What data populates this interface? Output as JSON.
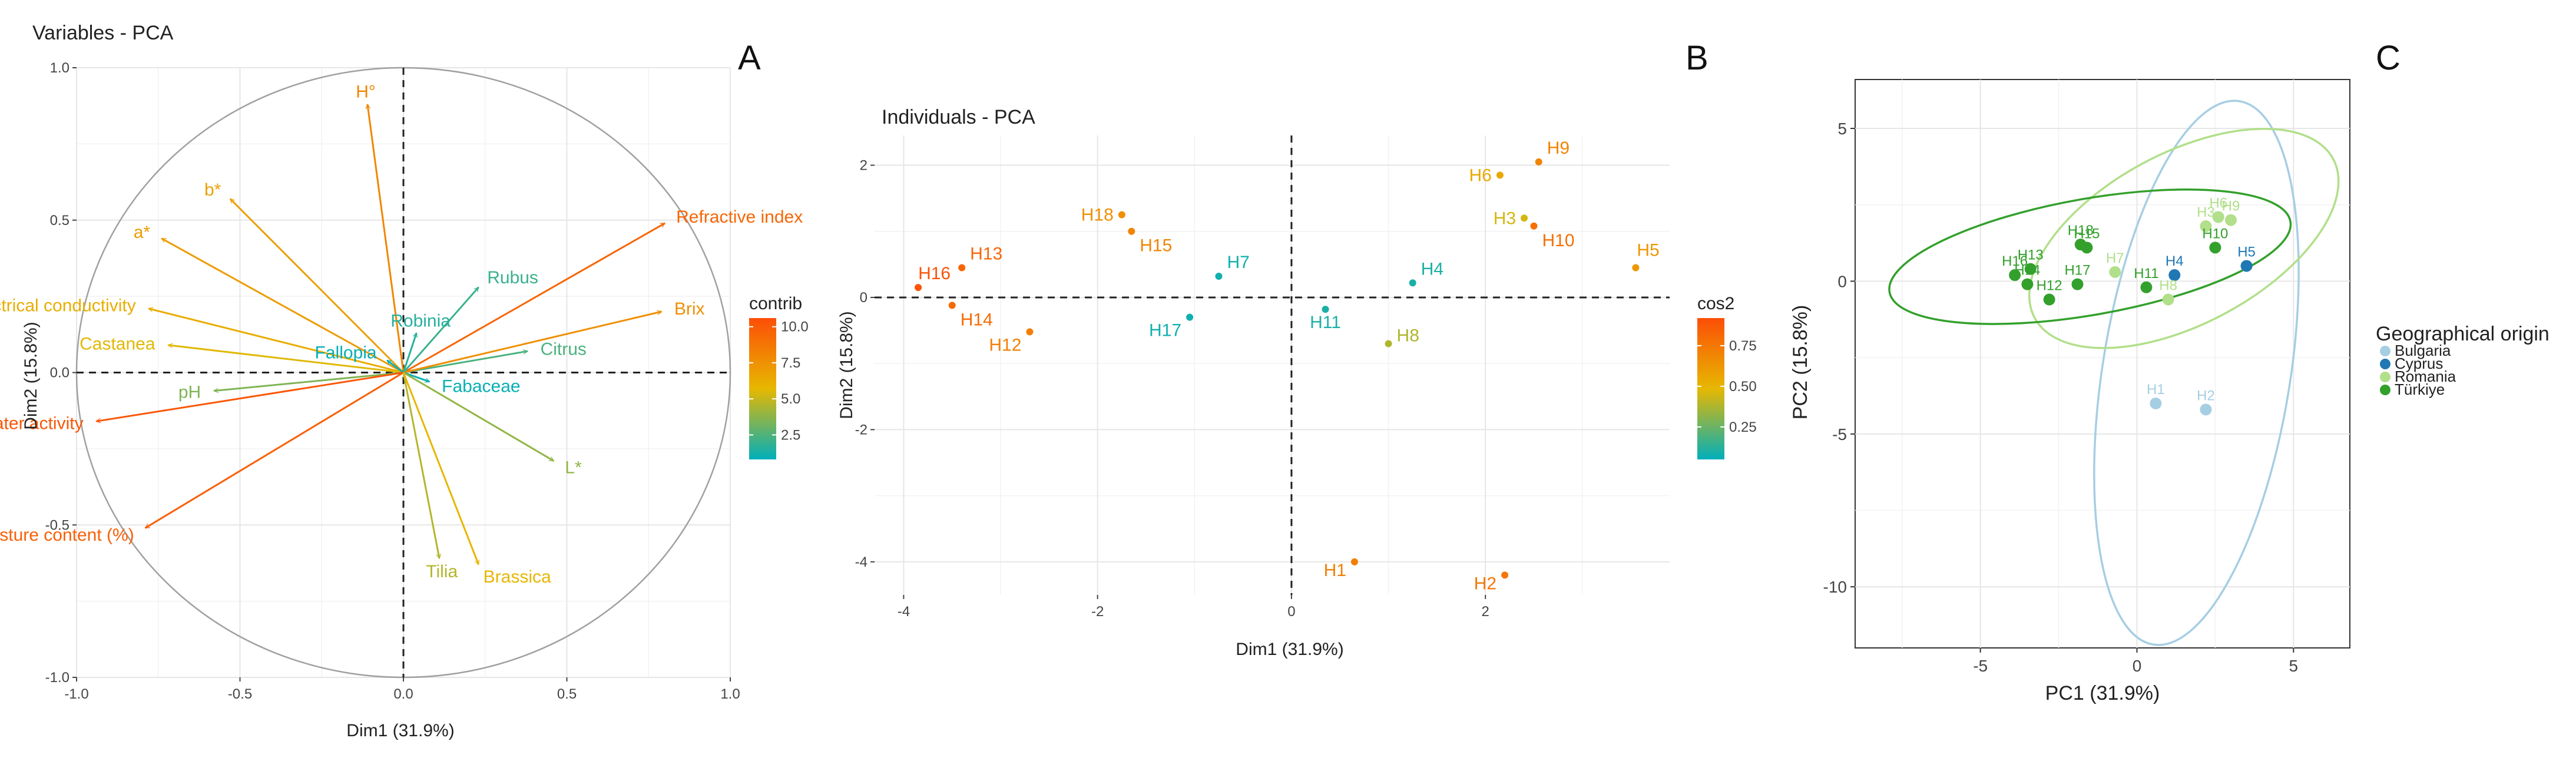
{
  "panel_labels": {
    "a": "A",
    "b": "B",
    "c": "C"
  },
  "chart_data": [
    {
      "type": "scatter",
      "subtype": "pca-variables-correlation-circle",
      "title": "Variables - PCA",
      "xlabel": "Dim1 (31.9%)",
      "ylabel": "Dim2 (15.8%)",
      "xlim": [
        -1.0,
        1.0
      ],
      "ylim": [
        -1.0,
        1.0
      ],
      "xticks": [
        -1.0,
        -0.5,
        0.0,
        0.5,
        1.0
      ],
      "yticks": [
        -1.0,
        -0.5,
        0.0,
        0.5,
        1.0
      ],
      "xtick_labels": [
        "-1.0",
        "-0.5",
        "0.0",
        "0.5",
        "1.0"
      ],
      "ytick_labels": [
        "-1.0",
        "-0.5",
        "0.0",
        "0.5",
        "1.0"
      ],
      "grid": true,
      "legend": {
        "title": "contrib",
        "placement": "right",
        "ticks": [
          "10.0",
          "7.5",
          "5.0",
          "2.5"
        ],
        "tick_values": [
          10.0,
          7.5,
          5.0,
          2.5
        ],
        "range": [
          0.8,
          10.6
        ]
      },
      "points": [
        {
          "label": "H°",
          "x": -0.11,
          "y": 0.88,
          "contrib": 8.0
        },
        {
          "label": "a*",
          "x": -0.74,
          "y": 0.44,
          "contrib": 7.0
        },
        {
          "label": "b*",
          "x": -0.53,
          "y": 0.57,
          "contrib": 6.8
        },
        {
          "label": "Refractive index",
          "x": 0.8,
          "y": 0.49,
          "contrib": 9.5
        },
        {
          "label": "Rubus",
          "x": 0.23,
          "y": 0.28,
          "contrib": 2.0
        },
        {
          "label": "Robinia",
          "x": 0.04,
          "y": 0.13,
          "contrib": 1.6
        },
        {
          "label": "Electrical conductivity",
          "x": -0.78,
          "y": 0.21,
          "contrib": 6.2
        },
        {
          "label": "Castanea",
          "x": -0.72,
          "y": 0.09,
          "contrib": 5.6
        },
        {
          "label": "Fallopia",
          "x": -0.05,
          "y": 0.04,
          "contrib": 0.9
        },
        {
          "label": "Citrus",
          "x": 0.38,
          "y": 0.07,
          "contrib": 2.4
        },
        {
          "label": "Brix",
          "x": 0.79,
          "y": 0.2,
          "contrib": 7.6
        },
        {
          "label": "Fabaceae",
          "x": 0.08,
          "y": -0.03,
          "contrib": 1.0
        },
        {
          "label": "pH",
          "x": -0.58,
          "y": -0.06,
          "contrib": 3.5
        },
        {
          "label": "Water activity",
          "x": -0.94,
          "y": -0.16,
          "contrib": 10.2
        },
        {
          "label": "L*",
          "x": 0.46,
          "y": -0.29,
          "contrib": 3.9
        },
        {
          "label": "Moisture content (%)",
          "x": -0.79,
          "y": -0.51,
          "contrib": 9.8
        },
        {
          "label": "Tilia",
          "x": 0.11,
          "y": -0.61,
          "contrib": 4.6
        },
        {
          "label": "Brassica",
          "x": 0.23,
          "y": -0.63,
          "contrib": 5.8
        }
      ]
    },
    {
      "type": "scatter",
      "subtype": "pca-individuals",
      "title": "Individuals - PCA",
      "xlabel": "Dim1 (31.9%)",
      "ylabel": "Dim2 (15.8%)",
      "xlim": [
        -4.3,
        3.9
      ],
      "ylim": [
        -4.5,
        2.45
      ],
      "xticks": [
        -4,
        -2,
        0,
        2
      ],
      "yticks": [
        -4,
        -2,
        0,
        2
      ],
      "xtick_labels": [
        "-4",
        "-2",
        "0",
        "2"
      ],
      "ytick_labels": [
        "-4",
        "-2",
        "0",
        "2"
      ],
      "grid": true,
      "legend": {
        "title": "cos2",
        "placement": "right",
        "ticks": [
          "0.75",
          "0.50",
          "0.25"
        ],
        "tick_values": [
          0.75,
          0.5,
          0.25
        ],
        "range": [
          0.05,
          0.92
        ]
      },
      "points": [
        {
          "label": "H1",
          "x": 0.65,
          "y": -4.0,
          "cos2": 0.72
        },
        {
          "label": "H2",
          "x": 2.2,
          "y": -4.2,
          "cos2": 0.75
        },
        {
          "label": "H3",
          "x": 2.4,
          "y": 1.2,
          "cos2": 0.45
        },
        {
          "label": "H4",
          "x": 1.25,
          "y": 0.22,
          "cos2": 0.1
        },
        {
          "label": "H5",
          "x": 3.55,
          "y": 0.45,
          "cos2": 0.62
        },
        {
          "label": "H6",
          "x": 2.15,
          "y": 1.85,
          "cos2": 0.55
        },
        {
          "label": "H7",
          "x": -0.75,
          "y": 0.32,
          "cos2": 0.08
        },
        {
          "label": "H8",
          "x": 1.0,
          "y": -0.7,
          "cos2": 0.38
        },
        {
          "label": "H9",
          "x": 2.55,
          "y": 2.05,
          "cos2": 0.7
        },
        {
          "label": "H10",
          "x": 2.5,
          "y": 1.08,
          "cos2": 0.78
        },
        {
          "label": "H11",
          "x": 0.35,
          "y": -0.18,
          "cos2": 0.1
        },
        {
          "label": "H12",
          "x": -2.7,
          "y": -0.52,
          "cos2": 0.72
        },
        {
          "label": "H13",
          "x": -3.4,
          "y": 0.45,
          "cos2": 0.82
        },
        {
          "label": "H14",
          "x": -3.5,
          "y": -0.12,
          "cos2": 0.8
        },
        {
          "label": "H15",
          "x": -1.65,
          "y": 1.0,
          "cos2": 0.7
        },
        {
          "label": "H16",
          "x": -3.85,
          "y": 0.15,
          "cos2": 0.9
        },
        {
          "label": "H17",
          "x": -1.05,
          "y": -0.3,
          "cos2": 0.08
        },
        {
          "label": "H18",
          "x": -1.75,
          "y": 1.25,
          "cos2": 0.65
        }
      ]
    },
    {
      "type": "scatter",
      "subtype": "pca-individuals-grouped",
      "title": "",
      "xlabel": "PC1 (31.9%)",
      "ylabel": "PC2 (15.8%)",
      "xlim": [
        -9.0,
        6.8
      ],
      "ylim": [
        -12.0,
        6.6
      ],
      "xticks": [
        -5,
        0,
        5
      ],
      "yticks": [
        -10,
        -5,
        0,
        5
      ],
      "xtick_labels": [
        "-5",
        "0",
        "5"
      ],
      "ytick_labels": [
        "-10",
        "-5",
        "0",
        "5"
      ],
      "grid": true,
      "legend": {
        "title": "Geographical origin",
        "placement": "right",
        "entries": [
          "Bulgaria",
          "Cyprus",
          "Romania",
          "Türkiye"
        ]
      },
      "groups": [
        {
          "name": "Bulgaria",
          "color": "#a6cee3"
        },
        {
          "name": "Cyprus",
          "color": "#1f78b4"
        },
        {
          "name": "Romania",
          "color": "#b2df8a"
        },
        {
          "name": "Türkiye",
          "color": "#33a02c"
        }
      ],
      "ellipses": [
        {
          "group": "Bulgaria",
          "cx": 1.9,
          "cy": -3.0,
          "rx": 3.0,
          "ry": 9.0,
          "angle_deg": -9,
          "color": "#a6cee3"
        },
        {
          "group": "Romania",
          "cx": 1.5,
          "cy": 1.4,
          "rx": 5.4,
          "ry": 2.8,
          "angle_deg": 28,
          "color": "#b2df8a"
        },
        {
          "group": "Türkiye",
          "cx": -1.5,
          "cy": 0.8,
          "rx": 6.5,
          "ry": 1.9,
          "angle_deg": 10,
          "color": "#33a02c"
        }
      ],
      "points": [
        {
          "label": "H1",
          "x": 0.6,
          "y": -4.0,
          "group": "Bulgaria"
        },
        {
          "label": "H2",
          "x": 2.2,
          "y": -4.2,
          "group": "Bulgaria"
        },
        {
          "label": "H4",
          "x": 1.2,
          "y": 0.2,
          "group": "Cyprus"
        },
        {
          "label": "H5",
          "x": 3.5,
          "y": 0.5,
          "group": "Cyprus"
        },
        {
          "label": "H3",
          "x": 2.2,
          "y": 1.8,
          "group": "Romania"
        },
        {
          "label": "H6",
          "x": 2.6,
          "y": 2.1,
          "group": "Romania"
        },
        {
          "label": "H7",
          "x": -0.7,
          "y": 0.3,
          "group": "Romania"
        },
        {
          "label": "H8",
          "x": 1.0,
          "y": -0.6,
          "group": "Romania"
        },
        {
          "label": "H9",
          "x": 3.0,
          "y": 2.0,
          "group": "Romania"
        },
        {
          "label": "H10",
          "x": 2.5,
          "y": 1.1,
          "group": "Türkiye"
        },
        {
          "label": "H11",
          "x": 0.3,
          "y": -0.2,
          "group": "Türkiye"
        },
        {
          "label": "H12",
          "x": -2.8,
          "y": -0.6,
          "group": "Türkiye"
        },
        {
          "label": "H13",
          "x": -3.4,
          "y": 0.4,
          "group": "Türkiye"
        },
        {
          "label": "H14",
          "x": -3.5,
          "y": -0.1,
          "group": "Türkiye"
        },
        {
          "label": "H15",
          "x": -1.6,
          "y": 1.1,
          "group": "Türkiye"
        },
        {
          "label": "H16",
          "x": -3.9,
          "y": 0.2,
          "group": "Türkiye"
        },
        {
          "label": "H17",
          "x": -1.9,
          "y": -0.1,
          "group": "Türkiye"
        },
        {
          "label": "H18",
          "x": -1.8,
          "y": 1.2,
          "group": "Türkiye"
        }
      ]
    }
  ]
}
